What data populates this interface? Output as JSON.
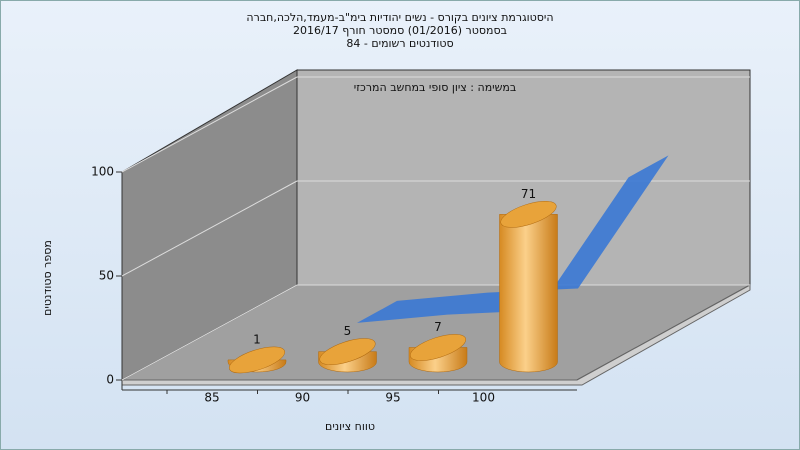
{
  "chart_data": {
    "type": "bar3d",
    "title": [
      "היסטוגרמת ציונים בקורס - נשים יהודיות בימ\"ב-מעמד,הלכה,חברה",
      "בסמסטר  (01/2016)  סמסטר חורף 2016/17",
      "סטודנטים רשומים - 84"
    ],
    "subtitle": "במשימה : ציון סופי במחשב המרכזי",
    "y_label": "מספר סטודנטים",
    "x_label": "טווח ציונים",
    "categories": [
      "85",
      "90",
      "95",
      "100"
    ],
    "values": [
      1,
      5,
      7,
      71
    ],
    "color": "#e8a33a",
    "ribbon_color": "#3a78d4",
    "ylim": [
      0,
      100
    ],
    "yticks": [
      0,
      50,
      100
    ],
    "grid": true
  }
}
